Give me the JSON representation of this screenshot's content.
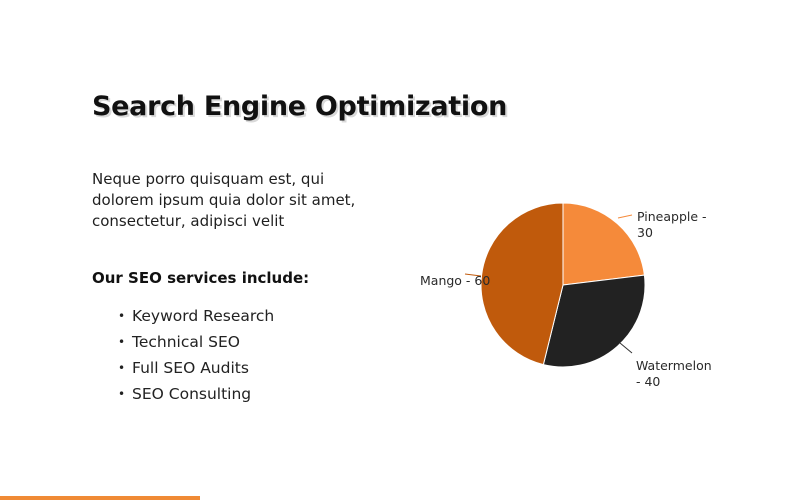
{
  "slide": {
    "title": "Search Engine Optimization",
    "intro": "Neque porro quisquam est, qui dolorem ipsum quia dolor sit amet, consectetur, adipisci velit",
    "services_heading": "Our SEO services include:",
    "bullet": "•",
    "services": [
      "Keyword Research",
      "Technical SEO",
      "Full SEO Audits",
      "SEO Consulting"
    ]
  },
  "colors": {
    "pineapple": "#f58a3a",
    "watermelon": "#222222",
    "mango": "#c05a0c",
    "accent_bar": "#f08a35"
  },
  "chart_data": {
    "type": "pie",
    "title": "",
    "slices": [
      {
        "label": "Pineapple",
        "value": 30,
        "display_lines": [
          "Pineapple -",
          "30"
        ],
        "color": "#f58a3a"
      },
      {
        "label": "Watermelon",
        "value": 40,
        "display_lines": [
          "Watermelon",
          "- 40"
        ],
        "color": "#222222"
      },
      {
        "label": "Mango",
        "value": 60,
        "display_lines": [
          "Mango - 60"
        ],
        "color": "#c05a0c"
      }
    ],
    "start": "12 o'clock",
    "direction": "clockwise",
    "legend": "none",
    "data_labels": "outside with leader lines"
  }
}
